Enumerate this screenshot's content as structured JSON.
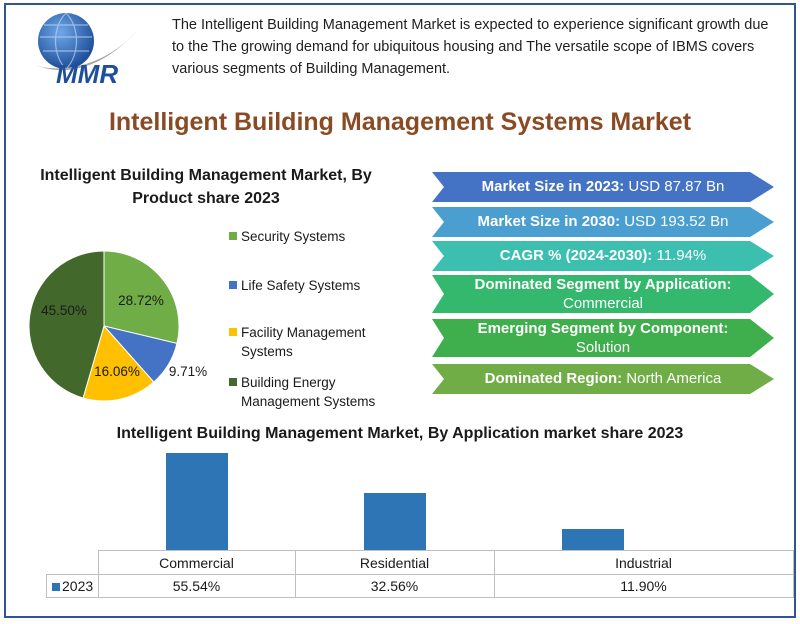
{
  "logo": {
    "text": "MMR",
    "colors": {
      "globe": "#1f4e9a",
      "globe_light": "#6fa8e8",
      "swoosh": "#a6a6a6"
    }
  },
  "intro": "The Intelligent Building Management Market is expected to experience significant growth due to the The growing demand for ubiquitous housing  and The versatile scope of IBMS covers various segments of Building Management.",
  "main_title": "Intelligent Building Management Systems Market",
  "highlights": [
    {
      "label": "Market Size in 2023:",
      "value": " USD 87.87 Bn",
      "color": "#4472c4"
    },
    {
      "label": "Market Size in 2030:",
      "value": " USD 193.52 Bn",
      "color": "#4a9fd0"
    },
    {
      "label": "CAGR % (2024-2030):",
      "value": " 11.94%",
      "color": "#3dbfb0"
    },
    {
      "label": "Dominated Segment by Application:",
      "value": "Commercial",
      "color": "#33b86e"
    },
    {
      "label": "Emerging Segment by Component:",
      "value": "Solution",
      "color": "#3fae4c"
    },
    {
      "label": "Dominated Region:",
      "value": " North America",
      "color": "#70ad47"
    }
  ],
  "chart_data": [
    {
      "type": "pie",
      "title": "Intelligent Building Management Market, By Product share  2023",
      "slices": [
        {
          "name": "Security Systems",
          "value": 28.72,
          "label": "28.72%",
          "color": "#70ad47"
        },
        {
          "name": "Life Safety Systems",
          "value": 9.71,
          "label": "9.71%",
          "color": "#4472c4"
        },
        {
          "name": "Facility Management Systems",
          "value": 16.06,
          "label": "16.06%",
          "color": "#ffc000"
        },
        {
          "name": "Building Energy Management Systems",
          "value": 45.5,
          "label": "45.50%",
          "color": "#43682b"
        }
      ],
      "legend_position": "right"
    },
    {
      "type": "bar",
      "title": "Intelligent Building Management Market, By Application market share  2023",
      "categories": [
        "Commercial",
        "Residential",
        "Industrial"
      ],
      "series": [
        {
          "name": "2023",
          "values": [
            55.54,
            32.56,
            11.9
          ],
          "labels": [
            "55.54%",
            "32.56%",
            "11.90%"
          ],
          "color": "#2e75b6"
        }
      ],
      "ylim": [
        0,
        55.54
      ],
      "grid": false,
      "legend_position": "table"
    }
  ]
}
